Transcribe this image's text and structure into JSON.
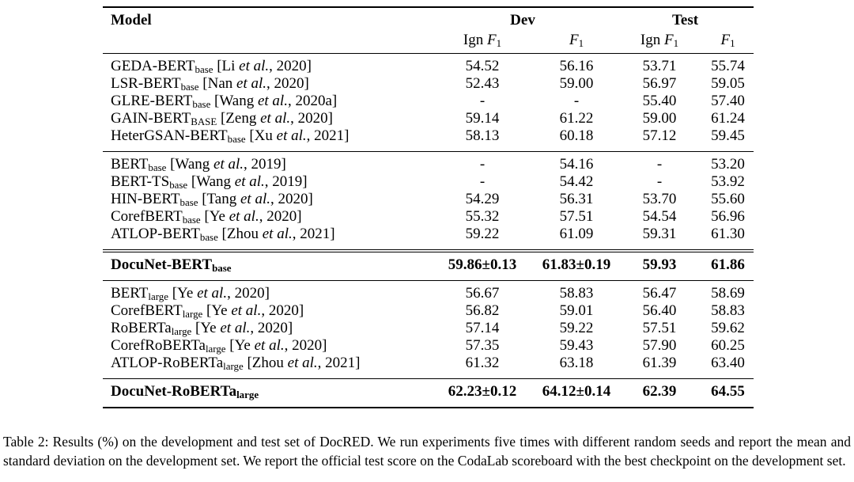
{
  "table": {
    "header": {
      "model_label": "Model",
      "dev_label": "Dev",
      "test_label": "Test",
      "subheaders": [
        "Ign *F*~1~",
        "*F*~1~",
        "Ign *F*~1~",
        "*F*~1~"
      ]
    },
    "groups": [
      {
        "rows": [
          {
            "model": "GEDA-BERT~base~ [Li *et al.*, 2020]",
            "values": [
              "54.52",
              "56.16",
              "53.71",
              "55.74"
            ],
            "bold": false
          },
          {
            "model": "LSR-BERT~base~ [Nan *et al.*, 2020]",
            "values": [
              "52.43",
              "59.00",
              "56.97",
              "59.05"
            ],
            "bold": false
          },
          {
            "model": "GLRE-BERT~base~ [Wang *et al.*, 2020a]",
            "values": [
              "-",
              "-",
              "55.40",
              "57.40"
            ],
            "bold": false
          },
          {
            "model": "GAIN-BERT~BASE~ [Zeng *et al.*, 2020]",
            "values": [
              "59.14",
              "61.22",
              "59.00",
              "61.24"
            ],
            "bold": false
          },
          {
            "model": "HeterGSAN-BERT~base~ [Xu *et al.*, 2021]",
            "values": [
              "58.13",
              "60.18",
              "57.12",
              "59.45"
            ],
            "bold": false
          }
        ]
      },
      {
        "rows": [
          {
            "model": "BERT~base~ [Wang *et al.*, 2019]",
            "values": [
              "-",
              "54.16",
              "-",
              "53.20"
            ],
            "bold": false
          },
          {
            "model": "BERT-TS~base~ [Wang *et al.*, 2019]",
            "values": [
              "-",
              "54.42",
              "-",
              "53.92"
            ],
            "bold": false
          },
          {
            "model": "HIN-BERT~base~ [Tang *et al.*, 2020]",
            "values": [
              "54.29",
              "56.31",
              "53.70",
              "55.60"
            ],
            "bold": false
          },
          {
            "model": "CorefBERT~base~ [Ye *et al.*, 2020]",
            "values": [
              "55.32",
              "57.51",
              "54.54",
              "56.96"
            ],
            "bold": false
          },
          {
            "model": "ATLOP-BERT~base~ [Zhou *et al.*, 2021]",
            "values": [
              "59.22",
              "61.09",
              "59.31",
              "61.30"
            ],
            "bold": false
          }
        ]
      },
      {
        "rows": [
          {
            "model": "DocuNet-BERT~base~",
            "values": [
              "59.86±0.13",
              "61.83±0.19",
              "59.93",
              "61.86"
            ],
            "bold": true
          }
        ]
      },
      {
        "rows": [
          {
            "model": "BERT~large~ [Ye *et al.*, 2020]",
            "values": [
              "56.67",
              "58.83",
              "56.47",
              "58.69"
            ],
            "bold": false
          },
          {
            "model": "CorefBERT~large~ [Ye *et al.*, 2020]",
            "values": [
              "56.82",
              "59.01",
              "56.40",
              "58.83"
            ],
            "bold": false
          },
          {
            "model": "RoBERTa~large~ [Ye *et al.*, 2020]",
            "values": [
              "57.14",
              "59.22",
              "57.51",
              "59.62"
            ],
            "bold": false
          },
          {
            "model": "CorefRoBERTa~large~ [Ye *et al.*, 2020]",
            "values": [
              "57.35",
              "59.43",
              "57.90",
              "60.25"
            ],
            "bold": false
          },
          {
            "model": "ATLOP-RoBERTa~large~ [Zhou *et al.*, 2021]",
            "values": [
              "61.32",
              "63.18",
              "61.39",
              "63.40"
            ],
            "bold": false
          }
        ]
      },
      {
        "rows": [
          {
            "model": "DocuNet-RoBERTa~large~",
            "values": [
              "62.23±0.12",
              "64.12±0.14",
              "62.39",
              "64.55"
            ],
            "bold": true
          }
        ]
      }
    ]
  },
  "caption": "Table 2: Results (%) on the development and test set of DocRED. We run experiments five times with different random seeds and report the mean and standard deviation on the development set. We report the official test score on the CodaLab scoreboard with the best checkpoint on the development set."
}
